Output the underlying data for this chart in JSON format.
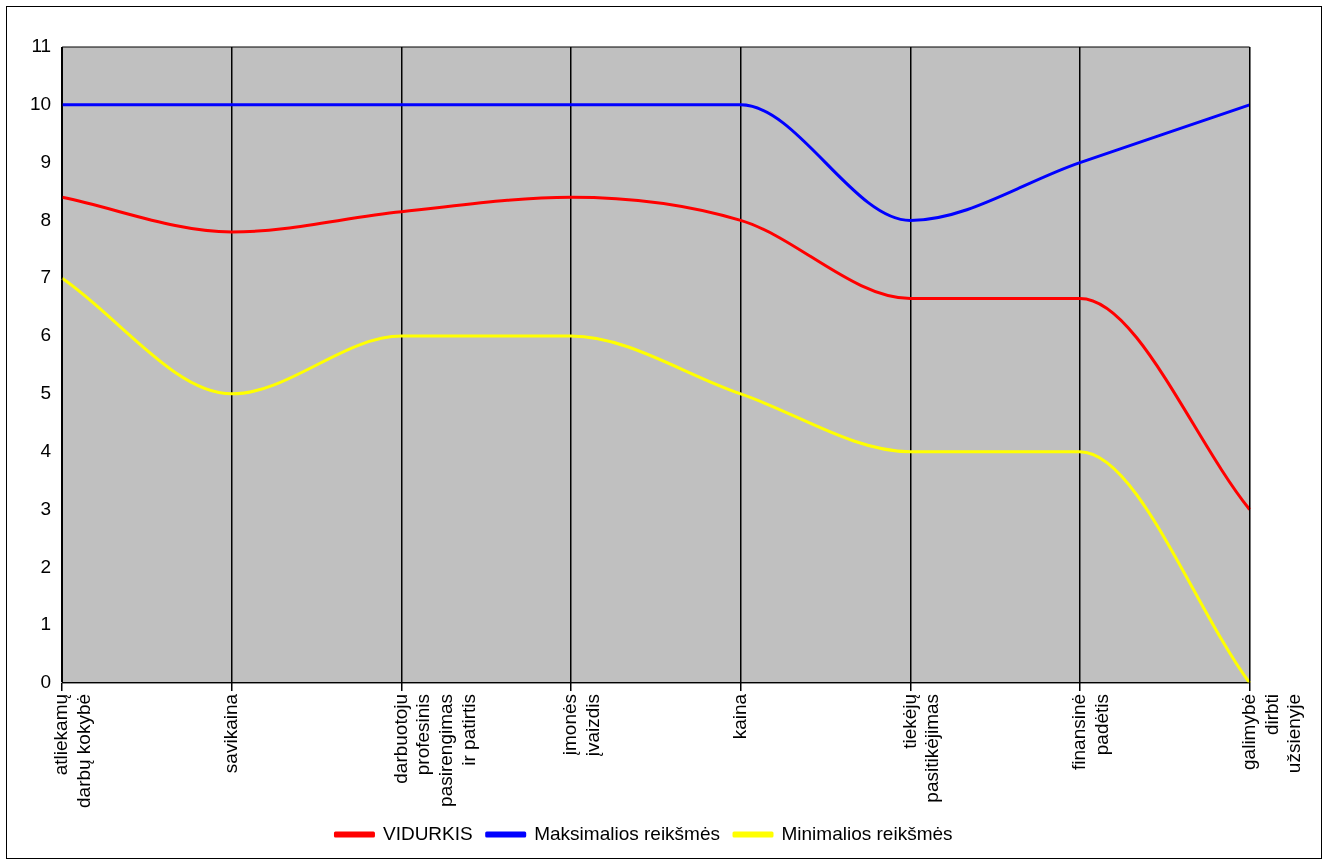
{
  "chart_data": {
    "type": "line",
    "categories": [
      "atliekamų darbų kokybė",
      "savikaina",
      "darbuotoju profesinis pasirengimas ir patirtis",
      "įmonės įvaizdis",
      "kaina",
      "tiekėjų pasitikėjimas",
      "finansinė padėtis",
      "galimybė dirbti užsienyje"
    ],
    "series": [
      {
        "name": "VIDURKIS",
        "color": "#ff0000",
        "values": [
          8.4,
          7.8,
          8.15,
          8.4,
          8.0,
          6.65,
          6.65,
          3.0
        ]
      },
      {
        "name": "Maksimalios reikšmės",
        "color": "#0000ff",
        "values": [
          10,
          10,
          10,
          10,
          10,
          8,
          9,
          10
        ]
      },
      {
        "name": "Minimalios reikšmės",
        "color": "#ffff00",
        "values": [
          7,
          5,
          6,
          6,
          5,
          4,
          4,
          0
        ]
      }
    ],
    "ylim": [
      0,
      11
    ],
    "yticks": [
      0,
      1,
      2,
      3,
      4,
      5,
      6,
      7,
      8,
      9,
      10,
      11
    ],
    "grid": "x",
    "legend": "bottom",
    "marker": "none",
    "line_style": "solid"
  }
}
